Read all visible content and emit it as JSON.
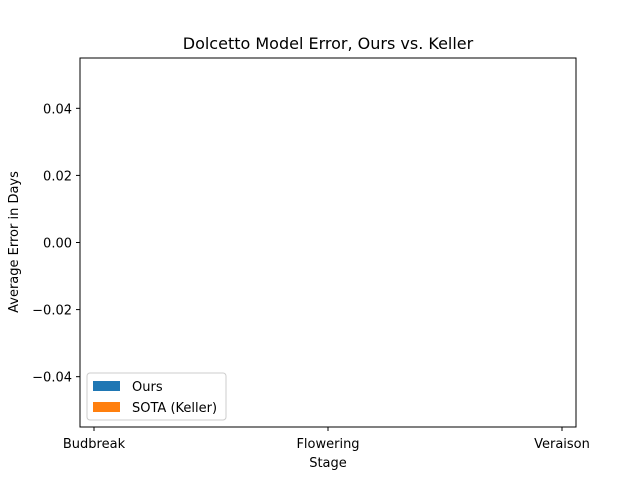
{
  "chart_data": {
    "type": "bar",
    "title": "Dolcetto Model Error, Ours vs. Keller",
    "xlabel": "Stage",
    "ylabel": "Average Error in Days",
    "categories": [
      "Budbreak",
      "Flowering",
      "Veraison"
    ],
    "series": [
      {
        "name": "Ours",
        "values": [
          null,
          null,
          null
        ],
        "color": "#1f77b4"
      },
      {
        "name": "SOTA (Keller)",
        "values": [
          null,
          null,
          null
        ],
        "color": "#ff7f0e"
      }
    ],
    "ylim": [
      -0.055,
      0.055
    ],
    "yticks": [
      0.04,
      0.02,
      0.0,
      -0.02,
      -0.04
    ],
    "ytick_labels": [
      "0.04",
      "0.02",
      "0.00",
      "−0.02",
      "−0.04"
    ],
    "grid": false,
    "legend_position": "lower-left"
  }
}
